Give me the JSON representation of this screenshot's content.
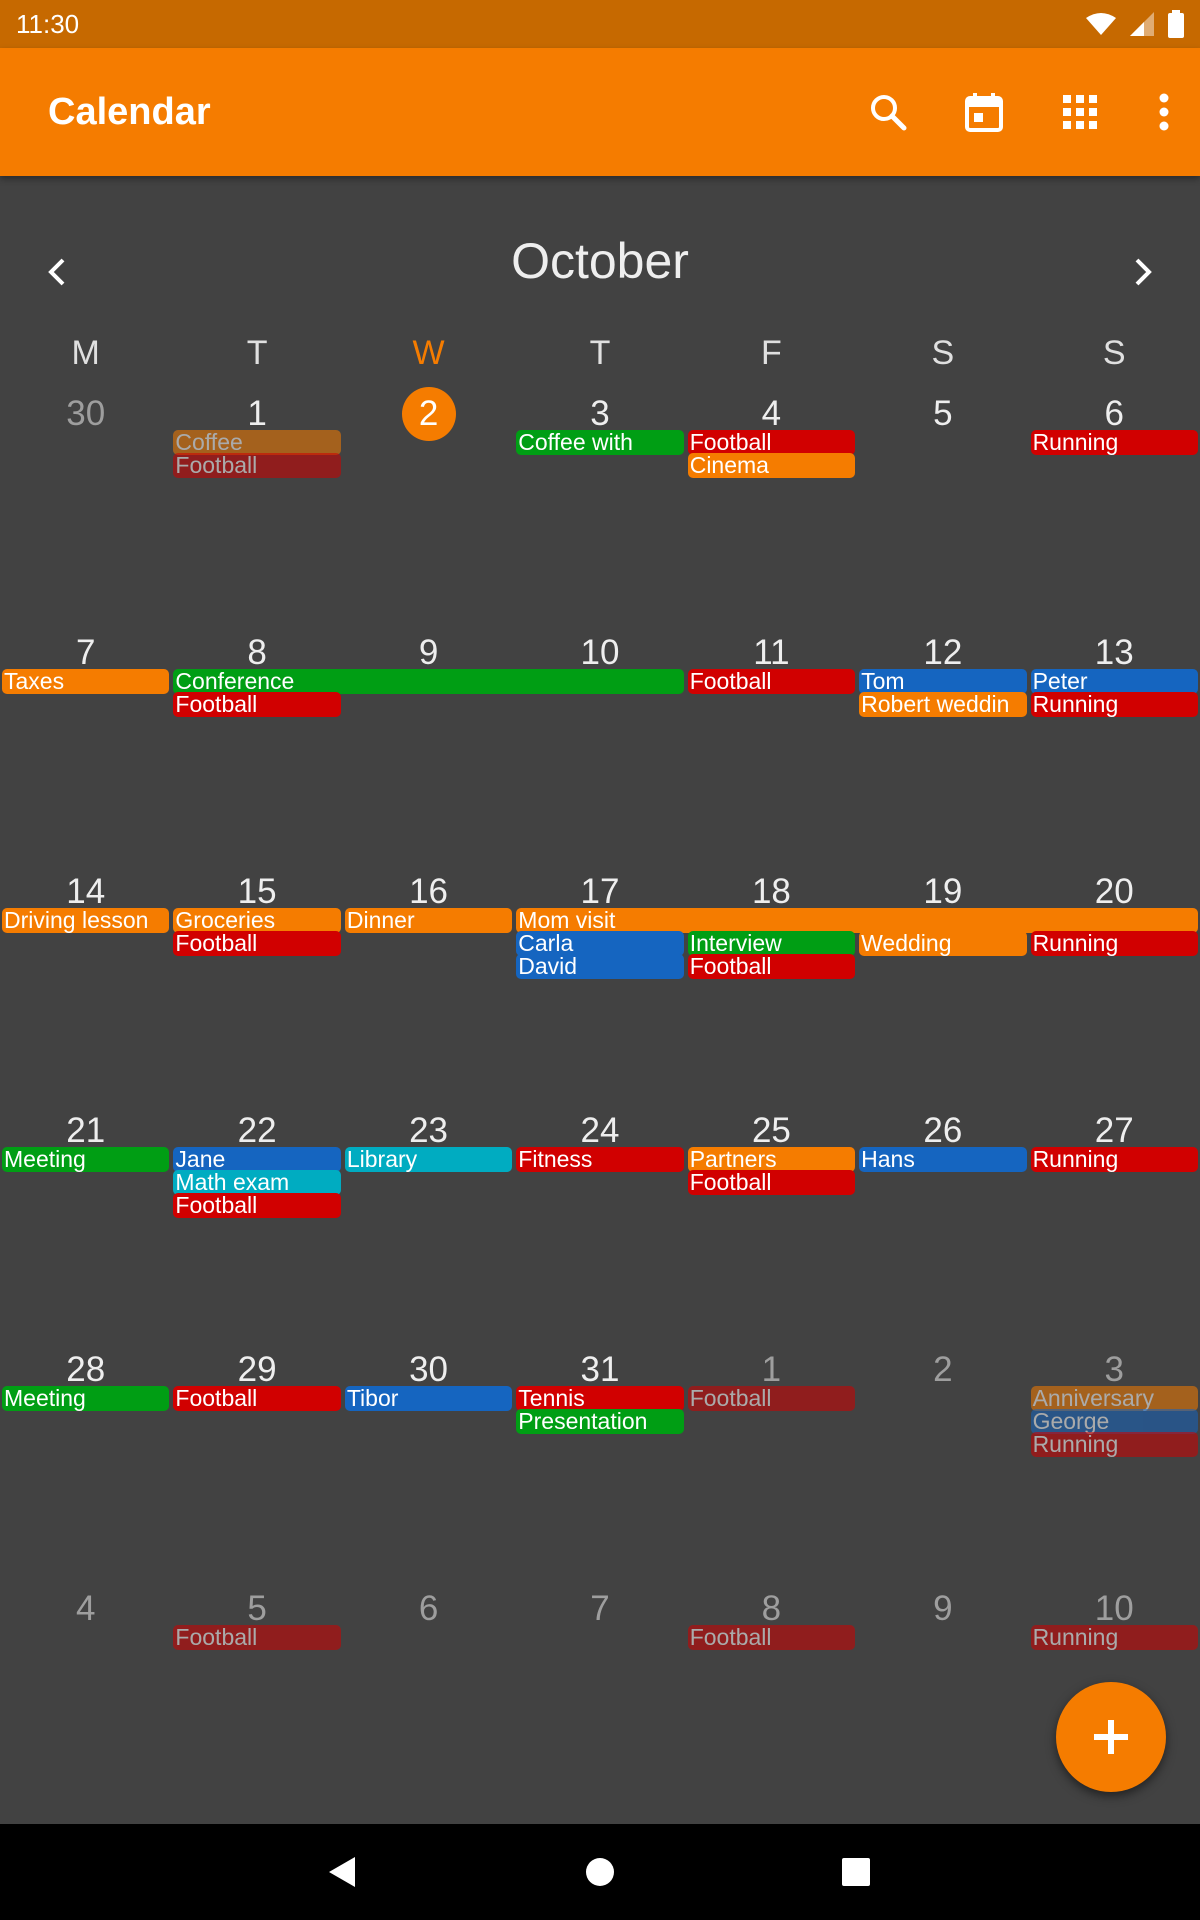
{
  "status_bar": {
    "time": "11:30"
  },
  "app_bar": {
    "title": "Calendar",
    "actions": [
      {
        "name": "search-button",
        "icon": "search-icon"
      },
      {
        "name": "go-to-today-button",
        "icon": "calendar-today-icon"
      },
      {
        "name": "change-view-button",
        "icon": "grid-view-icon"
      },
      {
        "name": "more-options-button",
        "icon": "more-vert-icon"
      }
    ]
  },
  "month": {
    "title": "October"
  },
  "weekdays": [
    "M",
    "T",
    "W",
    "T",
    "F",
    "S",
    "S"
  ],
  "today_index": 2,
  "colors": {
    "accent": "#f57c00",
    "orange": "#f57c00",
    "green": "#009e14",
    "red": "#d10000",
    "blue": "#1565c0",
    "cyan": "#00acc1"
  },
  "weeks": [
    {
      "days": [
        "30",
        "1",
        "2",
        "3",
        "4",
        "5",
        "6"
      ],
      "other_month": [
        true,
        false,
        false,
        false,
        false,
        false,
        false
      ],
      "events": [
        {
          "title": "Coffee",
          "start": 1,
          "span": 1,
          "row": 0,
          "color": "orange",
          "dim": true
        },
        {
          "title": "Football",
          "start": 1,
          "span": 1,
          "row": 1,
          "color": "red",
          "dim": true
        },
        {
          "title": "Coffee with",
          "start": 3,
          "span": 1,
          "row": 0,
          "color": "green"
        },
        {
          "title": "Football",
          "start": 4,
          "span": 1,
          "row": 0,
          "color": "red"
        },
        {
          "title": "Cinema",
          "start": 4,
          "span": 1,
          "row": 1,
          "color": "orange"
        },
        {
          "title": "Running",
          "start": 6,
          "span": 1,
          "row": 0,
          "color": "red"
        }
      ]
    },
    {
      "days": [
        "7",
        "8",
        "9",
        "10",
        "11",
        "12",
        "13"
      ],
      "other_month": [
        false,
        false,
        false,
        false,
        false,
        false,
        false
      ],
      "events": [
        {
          "title": "Taxes",
          "start": 0,
          "span": 1,
          "row": 0,
          "color": "orange"
        },
        {
          "title": "Conference",
          "start": 1,
          "span": 3,
          "row": 0,
          "color": "green"
        },
        {
          "title": "Football",
          "start": 1,
          "span": 1,
          "row": 1,
          "color": "red"
        },
        {
          "title": "Football",
          "start": 4,
          "span": 1,
          "row": 0,
          "color": "red"
        },
        {
          "title": "Tom",
          "start": 5,
          "span": 1,
          "row": 0,
          "color": "blue"
        },
        {
          "title": "Robert weddin",
          "start": 5,
          "span": 1,
          "row": 1,
          "color": "orange"
        },
        {
          "title": "Peter",
          "start": 6,
          "span": 1,
          "row": 0,
          "color": "blue"
        },
        {
          "title": "Running",
          "start": 6,
          "span": 1,
          "row": 1,
          "color": "red"
        }
      ]
    },
    {
      "days": [
        "14",
        "15",
        "16",
        "17",
        "18",
        "19",
        "20"
      ],
      "other_month": [
        false,
        false,
        false,
        false,
        false,
        false,
        false
      ],
      "events": [
        {
          "title": "Driving lesson",
          "start": 0,
          "span": 1,
          "row": 0,
          "color": "orange"
        },
        {
          "title": "Groceries",
          "start": 1,
          "span": 1,
          "row": 0,
          "color": "orange"
        },
        {
          "title": "Football",
          "start": 1,
          "span": 1,
          "row": 1,
          "color": "red"
        },
        {
          "title": "Dinner",
          "start": 2,
          "span": 1,
          "row": 0,
          "color": "orange"
        },
        {
          "title": "Mom visit",
          "start": 3,
          "span": 4,
          "row": 0,
          "color": "orange"
        },
        {
          "title": "Carla",
          "start": 3,
          "span": 1,
          "row": 1,
          "color": "blue"
        },
        {
          "title": "David",
          "start": 3,
          "span": 1,
          "row": 2,
          "color": "blue"
        },
        {
          "title": "Interview",
          "start": 4,
          "span": 1,
          "row": 1,
          "color": "green"
        },
        {
          "title": "Football",
          "start": 4,
          "span": 1,
          "row": 2,
          "color": "red"
        },
        {
          "title": "Wedding",
          "start": 5,
          "span": 1,
          "row": 1,
          "color": "orange"
        },
        {
          "title": "Running",
          "start": 6,
          "span": 1,
          "row": 1,
          "color": "red"
        }
      ]
    },
    {
      "days": [
        "21",
        "22",
        "23",
        "24",
        "25",
        "26",
        "27"
      ],
      "other_month": [
        false,
        false,
        false,
        false,
        false,
        false,
        false
      ],
      "events": [
        {
          "title": "Meeting",
          "start": 0,
          "span": 1,
          "row": 0,
          "color": "green"
        },
        {
          "title": "Jane",
          "start": 1,
          "span": 1,
          "row": 0,
          "color": "blue"
        },
        {
          "title": "Math exam",
          "start": 1,
          "span": 1,
          "row": 1,
          "color": "cyan"
        },
        {
          "title": "Football",
          "start": 1,
          "span": 1,
          "row": 2,
          "color": "red"
        },
        {
          "title": "Library",
          "start": 2,
          "span": 1,
          "row": 0,
          "color": "cyan"
        },
        {
          "title": "Fitness",
          "start": 3,
          "span": 1,
          "row": 0,
          "color": "red"
        },
        {
          "title": "Partners",
          "start": 4,
          "span": 1,
          "row": 0,
          "color": "orange"
        },
        {
          "title": "Football",
          "start": 4,
          "span": 1,
          "row": 1,
          "color": "red"
        },
        {
          "title": "Hans",
          "start": 5,
          "span": 1,
          "row": 0,
          "color": "blue"
        },
        {
          "title": "Running",
          "start": 6,
          "span": 1,
          "row": 0,
          "color": "red"
        }
      ]
    },
    {
      "days": [
        "28",
        "29",
        "30",
        "31",
        "1",
        "2",
        "3"
      ],
      "other_month": [
        false,
        false,
        false,
        false,
        true,
        true,
        true
      ],
      "events": [
        {
          "title": "Meeting",
          "start": 0,
          "span": 1,
          "row": 0,
          "color": "green"
        },
        {
          "title": "Football",
          "start": 1,
          "span": 1,
          "row": 0,
          "color": "red"
        },
        {
          "title": "Tibor",
          "start": 2,
          "span": 1,
          "row": 0,
          "color": "blue"
        },
        {
          "title": "Tennis",
          "start": 3,
          "span": 1,
          "row": 0,
          "color": "red"
        },
        {
          "title": "Presentation",
          "start": 3,
          "span": 1,
          "row": 1,
          "color": "green"
        },
        {
          "title": "Football",
          "start": 4,
          "span": 1,
          "row": 0,
          "color": "red",
          "dim": true
        },
        {
          "title": "Anniversary",
          "start": 6,
          "span": 1,
          "row": 0,
          "color": "orange",
          "dim": true
        },
        {
          "title": "George",
          "start": 6,
          "span": 1,
          "row": 1,
          "color": "blue",
          "dim": true
        },
        {
          "title": "Running",
          "start": 6,
          "span": 1,
          "row": 2,
          "color": "red",
          "dim": true
        }
      ]
    },
    {
      "days": [
        "4",
        "5",
        "6",
        "7",
        "8",
        "9",
        "10"
      ],
      "other_month": [
        true,
        true,
        true,
        true,
        true,
        true,
        true
      ],
      "events": [
        {
          "title": "Football",
          "start": 1,
          "span": 1,
          "row": 0,
          "color": "red",
          "dim": true
        },
        {
          "title": "Football",
          "start": 4,
          "span": 1,
          "row": 0,
          "color": "red",
          "dim": true
        },
        {
          "title": "Running",
          "start": 6,
          "span": 1,
          "row": 0,
          "color": "red",
          "dim": true
        }
      ]
    }
  ],
  "fab": {
    "icon": "plus-icon"
  },
  "system_nav": [
    "back-icon",
    "home-icon",
    "recents-icon"
  ]
}
